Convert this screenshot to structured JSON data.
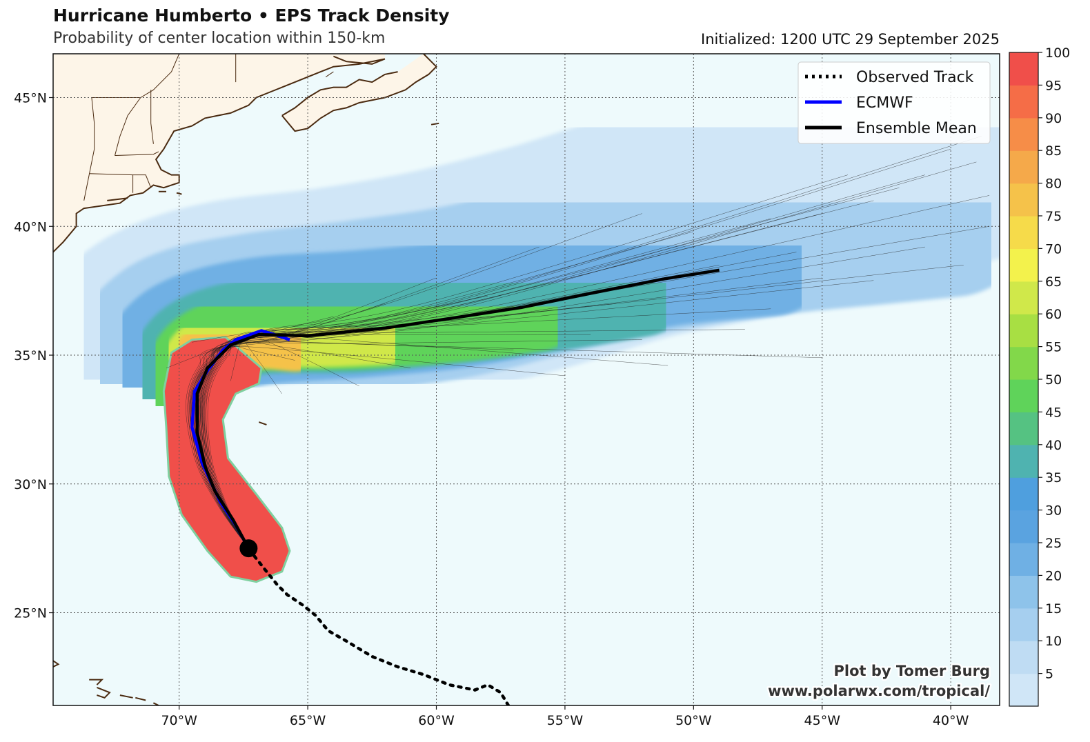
{
  "header": {
    "title": "Hurricane Humberto • EPS Track Density",
    "subtitle": "Probability of center location within 150-km",
    "initialized": "Initialized: 1200 UTC 29 September 2025"
  },
  "legend": {
    "observed": "Observed Track",
    "ecmwf": "ECMWF",
    "mean": "Ensemble Mean"
  },
  "credit": {
    "line1": "Plot by Tomer Burg",
    "line2": "www.polarwx.com/tropical/"
  },
  "colors": {
    "ocean": "#eefafc",
    "land": "#fdf5e8",
    "coast": "#4a2a10",
    "ecmwf": "#0000ff",
    "mean": "#000000"
  },
  "map_data": {
    "lon_range": [
      -74.9,
      -38.1
    ],
    "lat_range": [
      21.4,
      46.7
    ],
    "lon_ticks": [
      {
        "value": -70,
        "label": "70°W"
      },
      {
        "value": -65,
        "label": "65°W"
      },
      {
        "value": -60,
        "label": "60°W"
      },
      {
        "value": -55,
        "label": "55°W"
      },
      {
        "value": -50,
        "label": "50°W"
      },
      {
        "value": -45,
        "label": "45°W"
      },
      {
        "value": -40,
        "label": "40°W"
      }
    ],
    "lat_ticks": [
      {
        "value": 45,
        "label": "45°N"
      },
      {
        "value": 40,
        "label": "40°N"
      },
      {
        "value": 35,
        "label": "35°N"
      },
      {
        "value": 30,
        "label": "30°N"
      },
      {
        "value": 25,
        "label": "25°N"
      }
    ],
    "colorbar": {
      "range": [
        0,
        100
      ],
      "ticks": [
        {
          "value": 5,
          "label": "5"
        },
        {
          "value": 10,
          "label": "10"
        },
        {
          "value": 15,
          "label": "15"
        },
        {
          "value": 20,
          "label": "20"
        },
        {
          "value": 25,
          "label": "25"
        },
        {
          "value": 30,
          "label": "30"
        },
        {
          "value": 35,
          "label": "35"
        },
        {
          "value": 40,
          "label": "40"
        },
        {
          "value": 45,
          "label": "45"
        },
        {
          "value": 50,
          "label": "50"
        },
        {
          "value": 55,
          "label": "55"
        },
        {
          "value": 60,
          "label": "60"
        },
        {
          "value": 65,
          "label": "65"
        },
        {
          "value": 70,
          "label": "70"
        },
        {
          "value": 75,
          "label": "75"
        },
        {
          "value": 80,
          "label": "80"
        },
        {
          "value": 85,
          "label": "85"
        },
        {
          "value": 90,
          "label": "90"
        },
        {
          "value": 95,
          "label": "95"
        },
        {
          "value": 100,
          "label": "100"
        }
      ],
      "colors": [
        "#d0e6f7",
        "#bfdcf3",
        "#a6cfef",
        "#8ec3ea",
        "#6fb0e4",
        "#5aa3e0",
        "#4f9fde",
        "#4fb3b0",
        "#55c282",
        "#5fd35a",
        "#82d84a",
        "#a8df43",
        "#d0e84a",
        "#f3f24c",
        "#f6db4a",
        "#f5c24a",
        "#f5a94a",
        "#f68d48",
        "#f56d47",
        "#f04f4a"
      ]
    },
    "density_bands": [
      {
        "threshold": 1,
        "color": "#d0e6f7",
        "axis": [
          [
            -72,
            34.5
          ],
          [
            -70.5,
            35.8
          ],
          [
            -68,
            36.6
          ],
          [
            -64,
            37.1
          ],
          [
            -60,
            37.8
          ],
          [
            -56,
            38.8
          ],
          [
            -52,
            40.0
          ],
          [
            -48,
            40.8
          ],
          [
            -44,
            41.7
          ],
          [
            -40,
            42.8
          ],
          [
            -38.1,
            43.4
          ]
        ],
        "width": 330
      },
      {
        "threshold": 10,
        "color": "#a6cfef",
        "axis": [
          [
            -71.5,
            34.2
          ],
          [
            -70,
            35.7
          ],
          [
            -67,
            36.4
          ],
          [
            -63,
            36.9
          ],
          [
            -59,
            37.5
          ],
          [
            -55,
            38.5
          ],
          [
            -51,
            39.3
          ],
          [
            -47,
            39.9
          ],
          [
            -43,
            40.3
          ],
          [
            -40,
            40.6
          ]
        ],
        "width": 250
      },
      {
        "threshold": 20,
        "color": "#6fb0e4",
        "axis": [
          [
            -71,
            34.0
          ],
          [
            -69.8,
            35.5
          ],
          [
            -67,
            36.3
          ],
          [
            -63,
            36.6
          ],
          [
            -59,
            37.0
          ],
          [
            -55,
            37.8
          ],
          [
            -51,
            38.6
          ],
          [
            -47,
            39.0
          ]
        ],
        "width": 185
      },
      {
        "threshold": 30,
        "color": "#4fb3b0",
        "axis": [
          [
            -70.5,
            33.5
          ],
          [
            -69.5,
            35.3
          ],
          [
            -67,
            36.1
          ],
          [
            -63,
            36.2
          ],
          [
            -59,
            36.6
          ],
          [
            -55,
            37.1
          ],
          [
            -52,
            37.6
          ]
        ],
        "width": 140
      },
      {
        "threshold": 40,
        "color": "#5fd35a",
        "axis": [
          [
            -70.2,
            33.2
          ],
          [
            -69.3,
            35.1
          ],
          [
            -67,
            35.9
          ],
          [
            -63,
            36.0
          ],
          [
            -59,
            36.3
          ],
          [
            -56,
            36.7
          ]
        ],
        "width": 115
      },
      {
        "threshold": 55,
        "color": "#d0e84a",
        "axis": [
          [
            -70,
            33
          ],
          [
            -69.2,
            35
          ],
          [
            -67.2,
            35.8
          ],
          [
            -64.5,
            35.8
          ],
          [
            -62,
            35.9
          ]
        ],
        "width": 95
      },
      {
        "threshold": 70,
        "color": "#f5c24a",
        "axis": [
          [
            -69.8,
            32.5
          ],
          [
            -69.2,
            34.8
          ],
          [
            -67.5,
            35.6
          ],
          [
            -65.5,
            35.5
          ]
        ],
        "width": 85
      },
      {
        "threshold": 85,
        "color": "#f68d48",
        "axis": [
          [
            -69.6,
            32.0
          ],
          [
            -69.2,
            34.2
          ],
          [
            -68.3,
            35.2
          ]
        ],
        "width": 80
      }
    ],
    "core_region": {
      "threshold": 95,
      "color": "#f04f4a",
      "border": "#7fd0a0",
      "outline": [
        [
          -70.3,
          35.1
        ],
        [
          -69.5,
          35.6
        ],
        [
          -68.2,
          35.7
        ],
        [
          -66.8,
          34.5
        ],
        [
          -66.9,
          33.9
        ],
        [
          -67.8,
          33.5
        ],
        [
          -68.3,
          32.5
        ],
        [
          -68.1,
          31.0
        ],
        [
          -67.0,
          29.6
        ],
        [
          -66.0,
          28.3
        ],
        [
          -65.7,
          27.4
        ],
        [
          -66.0,
          26.6
        ],
        [
          -67.0,
          26.2
        ],
        [
          -68.0,
          26.4
        ],
        [
          -68.9,
          27.4
        ],
        [
          -69.9,
          28.8
        ],
        [
          -70.4,
          30.3
        ],
        [
          -70.5,
          32.2
        ],
        [
          -70.6,
          33.6
        ]
      ]
    },
    "observed_track": [
      [
        -57.2,
        21.4
      ],
      [
        -57.5,
        21.9
      ],
      [
        -58.0,
        22.2
      ],
      [
        -58.5,
        22.0
      ],
      [
        -59.5,
        22.2
      ],
      [
        -60.5,
        22.6
      ],
      [
        -61.5,
        22.9
      ],
      [
        -62.5,
        23.3
      ],
      [
        -63.5,
        23.9
      ],
      [
        -64.2,
        24.3
      ],
      [
        -64.7,
        24.9
      ],
      [
        -65.2,
        25.3
      ],
      [
        -65.8,
        25.7
      ],
      [
        -66.2,
        26.1
      ],
      [
        -66.6,
        26.6
      ],
      [
        -67.0,
        27.1
      ],
      [
        -67.3,
        27.5
      ]
    ],
    "ecmwf_track": [
      [
        -67.3,
        27.5
      ],
      [
        -67.8,
        28.4
      ],
      [
        -68.4,
        29.3
      ],
      [
        -69.1,
        30.8
      ],
      [
        -69.5,
        32.2
      ],
      [
        -69.4,
        33.6
      ],
      [
        -68.9,
        34.4
      ],
      [
        -68.3,
        35.2
      ],
      [
        -67.8,
        35.6
      ],
      [
        -66.8,
        35.95
      ],
      [
        -66.3,
        35.8
      ],
      [
        -65.7,
        35.6
      ]
    ],
    "mean_track": [
      [
        -67.3,
        27.5
      ],
      [
        -67.9,
        28.6
      ],
      [
        -68.6,
        29.7
      ],
      [
        -69.0,
        30.7
      ],
      [
        -69.3,
        32.0
      ],
      [
        -69.3,
        33.5
      ],
      [
        -68.9,
        34.5
      ],
      [
        -68.0,
        35.4
      ],
      [
        -66.9,
        35.8
      ],
      [
        -65.0,
        35.75
      ],
      [
        -62.0,
        36.05
      ],
      [
        -59.3,
        36.45
      ],
      [
        -56.7,
        36.85
      ],
      [
        -54.0,
        37.4
      ],
      [
        -51.2,
        37.95
      ],
      [
        -49.0,
        38.3
      ]
    ],
    "storm_position": [
      -67.3,
      27.5
    ],
    "member_endpoints": [
      [
        -49,
        38.5
      ],
      [
        -45,
        40.5
      ],
      [
        -42,
        41.5
      ],
      [
        -39,
        42.5
      ],
      [
        -40,
        43.0
      ],
      [
        -44,
        42.0
      ],
      [
        -46,
        39.0
      ],
      [
        -43,
        37.9
      ],
      [
        -47,
        36.8
      ],
      [
        -45,
        34.9
      ],
      [
        -51,
        34.6
      ],
      [
        -55,
        34.2
      ],
      [
        -57,
        35.2
      ],
      [
        -53,
        37.0
      ],
      [
        -41,
        39.2
      ],
      [
        -38.5,
        41.2
      ],
      [
        -38.5,
        40.0
      ],
      [
        -47,
        40.3
      ],
      [
        -50,
        39.8
      ],
      [
        -52,
        40.5
      ],
      [
        -56,
        39.2
      ],
      [
        -45,
        38.0
      ],
      [
        -60,
        38.0
      ],
      [
        -58,
        37.3
      ],
      [
        -54,
        35.8
      ],
      [
        -41,
        42.0
      ],
      [
        -43,
        41.0
      ],
      [
        -48,
        36.0
      ],
      [
        -52,
        35.6
      ],
      [
        -38.8,
        43.5
      ],
      [
        -39.5,
        38.5
      ],
      [
        -61,
        34.5
      ],
      [
        -63,
        33.8
      ],
      [
        -65.5,
        34.8
      ],
      [
        -66,
        33.5
      ],
      [
        -64,
        36.5
      ],
      [
        -62,
        37.0
      ],
      [
        -68,
        34.0
      ],
      [
        -69.5,
        35.5
      ],
      [
        -70.5,
        34.5
      ]
    ],
    "coastlines": [
      [
        [
          -74.9,
          39.0
        ],
        [
          -74.5,
          39.4
        ],
        [
          -74.0,
          40.0
        ],
        [
          -74.0,
          40.5
        ],
        [
          -73.7,
          40.7
        ],
        [
          -73.0,
          40.8
        ],
        [
          -72.3,
          40.9
        ],
        [
          -71.9,
          41.2
        ],
        [
          -71.4,
          41.3
        ],
        [
          -71.0,
          41.6
        ],
        [
          -70.6,
          41.5
        ],
        [
          -70.0,
          41.7
        ],
        [
          -70.0,
          42.0
        ],
        [
          -70.3,
          42.0
        ],
        [
          -70.7,
          42.2
        ],
        [
          -70.9,
          42.6
        ],
        [
          -70.6,
          43.0
        ],
        [
          -70.2,
          43.7
        ],
        [
          -69.5,
          43.9
        ],
        [
          -69.0,
          44.2
        ],
        [
          -68.5,
          44.3
        ],
        [
          -68.0,
          44.4
        ],
        [
          -67.3,
          44.7
        ],
        [
          -67.0,
          45.0
        ],
        [
          -66.5,
          45.2
        ],
        [
          -66.0,
          45.4
        ],
        [
          -65.5,
          45.6
        ],
        [
          -65.0,
          45.8
        ],
        [
          -64.5,
          46.0
        ],
        [
          -64.0,
          46.2
        ],
        [
          -63.0,
          46.3
        ],
        [
          -62.0,
          46.5
        ]
      ],
      [
        [
          -66.0,
          44.3
        ],
        [
          -65.5,
          43.7
        ],
        [
          -65.0,
          43.8
        ],
        [
          -64.5,
          44.2
        ],
        [
          -64.0,
          44.5
        ],
        [
          -63.5,
          44.6
        ],
        [
          -63.0,
          44.8
        ],
        [
          -62.0,
          45.0
        ],
        [
          -61.2,
          45.3
        ],
        [
          -60.8,
          45.6
        ],
        [
          -60.3,
          45.9
        ],
        [
          -60.0,
          46.2
        ],
        [
          -60.5,
          46.7
        ]
      ],
      [
        [
          -66.0,
          44.3
        ],
        [
          -65.5,
          44.6
        ],
        [
          -65.0,
          45.0
        ],
        [
          -64.5,
          45.3
        ],
        [
          -64.0,
          45.4
        ],
        [
          -63.5,
          45.4
        ],
        [
          -63.0,
          45.7
        ],
        [
          -62.5,
          45.6
        ],
        [
          -62.0,
          45.9
        ],
        [
          -61.5,
          46.0
        ]
      ],
      [
        [
          -64.0,
          46.6
        ],
        [
          -63.5,
          46.4
        ],
        [
          -62.5,
          46.3
        ],
        [
          -62.0,
          46.5
        ]
      ],
      [
        [
          -70.8,
          41.35
        ],
        [
          -70.5,
          41.35
        ]
      ],
      [
        [
          -70.1,
          41.3
        ],
        [
          -69.9,
          41.25
        ]
      ],
      [
        [
          -72.0,
          41.1
        ],
        [
          -72.8,
          41.0
        ]
      ]
    ],
    "state_borders": [
      [
        [
          -73.7,
          41.0
        ],
        [
          -73.5,
          42.0
        ],
        [
          -73.3,
          43.0
        ],
        [
          -73.3,
          44.0
        ],
        [
          -73.4,
          45.0
        ]
      ],
      [
        [
          -71.8,
          41.3
        ],
        [
          -71.8,
          42.0
        ]
      ],
      [
        [
          -73.5,
          42.05
        ],
        [
          -71.8,
          42.0
        ],
        [
          -71.3,
          42.0
        ],
        [
          -71.1,
          41.5
        ]
      ],
      [
        [
          -72.5,
          42.75
        ],
        [
          -71.0,
          42.8
        ],
        [
          -70.8,
          42.9
        ]
      ],
      [
        [
          -72.5,
          42.75
        ],
        [
          -72.3,
          43.5
        ],
        [
          -72.0,
          44.3
        ],
        [
          -71.5,
          45.0
        ]
      ],
      [
        [
          -71.0,
          43.2
        ],
        [
          -71.1,
          44.0
        ],
        [
          -71.1,
          45.3
        ]
      ],
      [
        [
          -73.4,
          45.0
        ],
        [
          -71.5,
          45.0
        ],
        [
          -71.0,
          45.3
        ],
        [
          -70.3,
          46.0
        ],
        [
          -70.0,
          46.7
        ]
      ],
      [
        [
          -67.8,
          45.6
        ],
        [
          -67.8,
          46.7
        ]
      ],
      [
        [
          -64.3,
          45.8
        ],
        [
          -64.0,
          46.0
        ]
      ]
    ],
    "islands": [
      [
        [
          -75.0,
          23.2
        ],
        [
          -74.7,
          23.0
        ],
        [
          -74.9,
          22.9
        ]
      ],
      [
        [
          -73.5,
          22.4
        ],
        [
          -73.0,
          22.4
        ],
        [
          -73.2,
          22.2
        ]
      ],
      [
        [
          -73.2,
          22.1
        ],
        [
          -72.7,
          21.9
        ],
        [
          -72.9,
          21.7
        ],
        [
          -73.2,
          21.8
        ]
      ],
      [
        [
          -72.3,
          21.8
        ],
        [
          -71.8,
          21.7
        ]
      ],
      [
        [
          -71.7,
          21.7
        ],
        [
          -71.3,
          21.6
        ]
      ],
      [
        [
          -71.0,
          21.5
        ],
        [
          -70.8,
          21.4
        ]
      ],
      [
        [
          -59.9,
          44.0
        ],
        [
          -60.2,
          43.95
        ]
      ],
      [
        [
          -66.9,
          32.4
        ],
        [
          -66.6,
          32.3
        ]
      ]
    ]
  }
}
